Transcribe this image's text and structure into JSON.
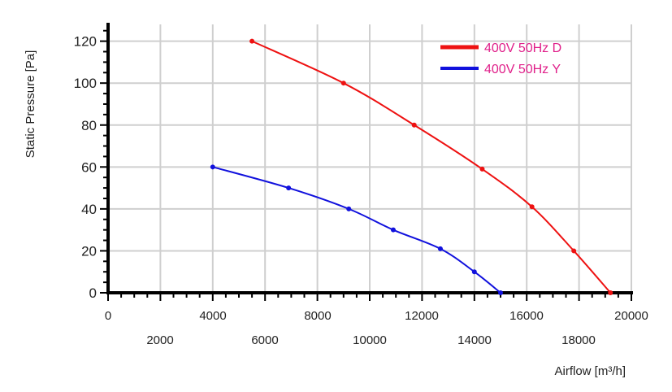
{
  "chart_data": {
    "type": "line",
    "xlabel": "Airflow [m³/h]",
    "ylabel": "Static Pressure [Pa]",
    "xlim": [
      0,
      20000
    ],
    "ylim": [
      0,
      128
    ],
    "x_ticks_top": [
      "0",
      "4000",
      "8000",
      "10000",
      "14000",
      "16000",
      "20000"
    ],
    "x_ticks_bottom": [
      "2000",
      "6000",
      "10000",
      "14000",
      "18000"
    ],
    "y_ticks": [
      "0",
      "20",
      "40",
      "60",
      "80",
      "100",
      "120"
    ],
    "grid": true,
    "legend_position": "top-right",
    "legend_text_color": "#e0208a",
    "series": [
      {
        "name": "400V 50Hz D",
        "color": "#ee1111",
        "x": [
          5500,
          9000,
          11700,
          14300,
          16200,
          17800,
          19200
        ],
        "y": [
          120,
          100,
          80,
          59,
          41,
          20,
          0
        ]
      },
      {
        "name": "400V 50Hz Y",
        "color": "#1111dd",
        "x": [
          4000,
          6900,
          9200,
          10900,
          12700,
          14000,
          15000
        ],
        "y": [
          60,
          50,
          40,
          30,
          21,
          10,
          0
        ]
      }
    ]
  }
}
